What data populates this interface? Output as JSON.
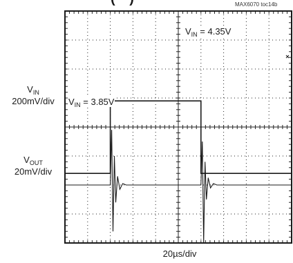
{
  "header": {
    "title_fragment": "(' ' )",
    "chip_tag": "MAX6070 toc14b"
  },
  "left_labels": {
    "vin_name": "V",
    "vin_sub": "IN",
    "vin_scale": "200mV/div",
    "vout_name": "V",
    "vout_sub": "OUT",
    "vout_scale": "20mV/div"
  },
  "bottom_label": "20µs/div",
  "annotations": {
    "low": {
      "name": "V",
      "sub": "IN",
      "value": " = 3.85V"
    },
    "high": {
      "name": "V",
      "sub": "IN",
      "value": " = 4.35V"
    }
  },
  "colors": {
    "trace": "#1a1a1a",
    "grid": "#222222",
    "background": "#ffffff"
  },
  "chart_data": {
    "type": "line",
    "grid": {
      "x_divisions": 10,
      "y_divisions": 8
    },
    "x_unit_per_div": "20µs",
    "series": [
      {
        "name": "VIN",
        "unit_per_div": "200mV",
        "x": [
          0,
          2,
          2,
          6,
          6,
          10
        ],
        "y": [
          3.85,
          3.85,
          4.35,
          4.35,
          3.85,
          3.85
        ]
      },
      {
        "name": "VOUT",
        "unit_per_div": "20mV",
        "x": [
          0,
          2.0,
          2.06,
          2.12,
          2.18,
          2.24,
          2.32,
          2.42,
          2.55,
          2.7,
          3.0,
          6.0,
          6.06,
          6.12,
          6.18,
          6.24,
          6.32,
          6.42,
          6.55,
          6.7,
          7.0,
          10
        ],
        "y": [
          0,
          0,
          38,
          -32,
          20,
          -12,
          6,
          -3,
          1,
          0,
          0,
          0,
          30,
          -40,
          16,
          -10,
          5,
          -2,
          1,
          0,
          0,
          0
        ]
      }
    ]
  }
}
